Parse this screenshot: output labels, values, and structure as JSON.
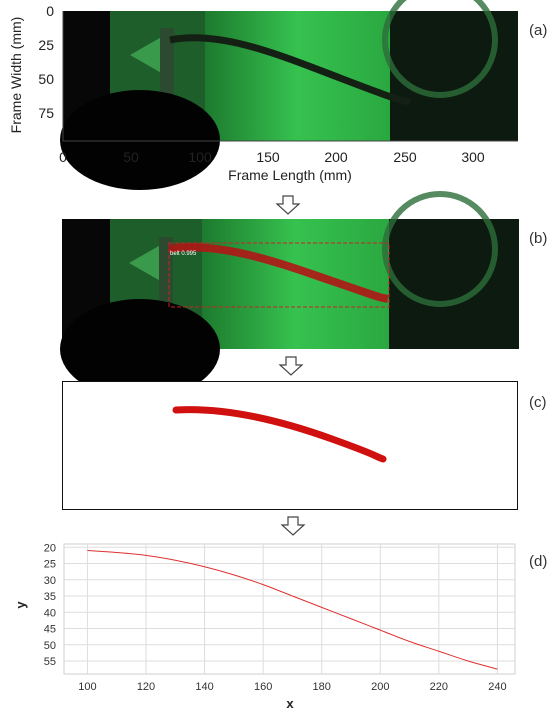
{
  "panels": {
    "a": {
      "label": "(a)",
      "xlabel": "Frame Length (mm)",
      "ylabel": "Frame Width (mm)",
      "xticks": [
        "0",
        "50",
        "100",
        "150",
        "200",
        "250",
        "300"
      ],
      "yticks": [
        "0",
        "25",
        "50",
        "75"
      ]
    },
    "b": {
      "label": "(b)",
      "detection_text": "belt 0.995"
    },
    "c": {
      "label": "(c)"
    },
    "d": {
      "label": "(d)"
    }
  },
  "colors": {
    "belt_red": "#cc1111",
    "green_background": "#2fb84a",
    "curve": "#e03030"
  },
  "chart_data": {
    "type": "line",
    "xlabel": "x",
    "ylabel": "y",
    "xlim": [
      92,
      246
    ],
    "ylim": [
      19,
      59
    ],
    "y_inverted": true,
    "grid": true,
    "xticks": [
      100,
      120,
      140,
      160,
      180,
      200,
      220,
      240
    ],
    "yticks": [
      20,
      25,
      30,
      35,
      40,
      45,
      50,
      55
    ],
    "series": [
      {
        "x": [
          100,
          110,
          120,
          130,
          140,
          150,
          160,
          170,
          180,
          190,
          200,
          210,
          220,
          230,
          240
        ],
        "y": [
          21,
          21.6,
          22.5,
          24,
          26,
          28.5,
          31.5,
          35,
          38.5,
          42,
          45.5,
          49,
          52,
          55,
          57.5
        ]
      }
    ]
  }
}
